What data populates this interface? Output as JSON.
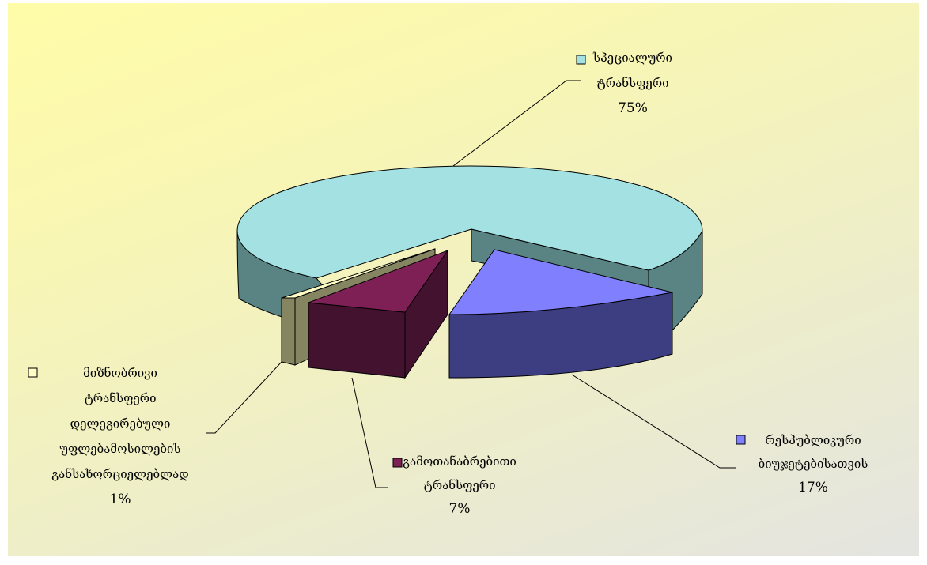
{
  "chart_data": {
    "type": "pie",
    "style": "3d-exploded",
    "slices": [
      {
        "label_lines": [
          "სპეციალური",
          "ტრანსფერი"
        ],
        "value": 75,
        "value_label": "75%",
        "color": "#a3e1e3",
        "side_color": "#5a8484"
      },
      {
        "label_lines": [
          "რესპუბლიკური",
          "ბიუჯეტებისათვის"
        ],
        "value": 17,
        "value_label": "17%",
        "color": "#8080ff",
        "side_color": "#3d3d82"
      },
      {
        "label_lines": [
          "გამოთანაბრებითი",
          "ტრანსფერი"
        ],
        "value": 7,
        "value_label": "7%",
        "color": "#7e1f56",
        "side_color": "#42122f"
      },
      {
        "label_lines": [
          "მიზნობრივი",
          "ტრანსფერი",
          "დელეგირებული",
          "უფლებამოსილების",
          "განსახორციელებლად"
        ],
        "value": 1,
        "value_label": "1%",
        "color": "#fffcc6",
        "side_color": "#858562"
      }
    ],
    "legend": "labels-with-leader-lines",
    "title": ""
  }
}
